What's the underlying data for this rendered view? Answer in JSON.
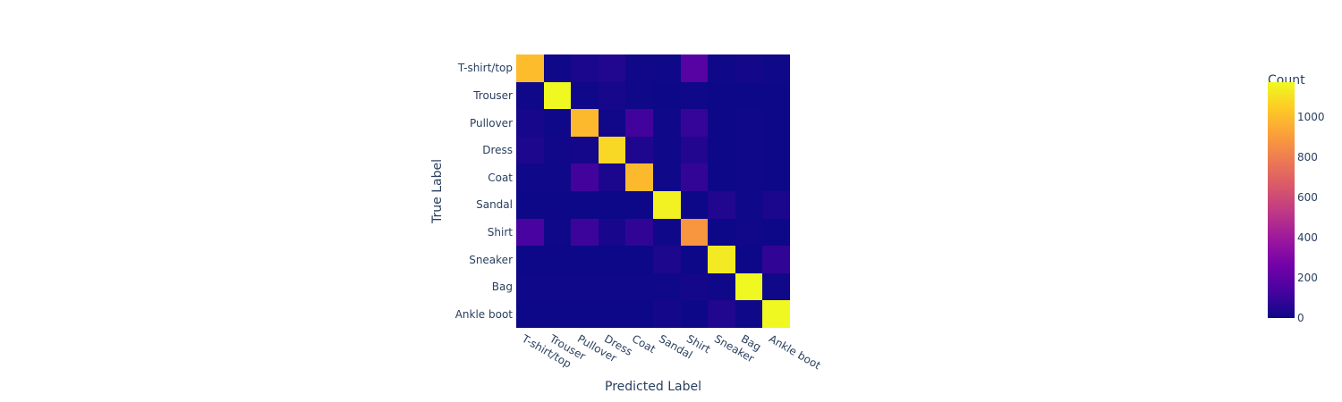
{
  "chart_data": {
    "type": "heatmap",
    "title": "",
    "xlabel": "Predicted Label",
    "ylabel": "True Label",
    "categories_x": [
      "T-shirt/top",
      "Trouser",
      "Pullover",
      "Dress",
      "Coat",
      "Sandal",
      "Shirt",
      "Sneaker",
      "Bag",
      "Ankle boot"
    ],
    "categories_y": [
      "T-shirt/top",
      "Trouser",
      "Pullover",
      "Dress",
      "Coat",
      "Sandal",
      "Shirt",
      "Sneaker",
      "Bag",
      "Ankle boot"
    ],
    "z": [
      [
        1000,
        5,
        30,
        45,
        10,
        5,
        180,
        5,
        15,
        5
      ],
      [
        5,
        1170,
        5,
        20,
        5,
        0,
        5,
        0,
        0,
        0
      ],
      [
        20,
        5,
        990,
        10,
        120,
        5,
        90,
        0,
        5,
        0
      ],
      [
        35,
        10,
        15,
        1080,
        40,
        5,
        50,
        0,
        5,
        0
      ],
      [
        5,
        5,
        120,
        30,
        990,
        5,
        85,
        0,
        5,
        0
      ],
      [
        0,
        0,
        0,
        0,
        0,
        1150,
        0,
        45,
        5,
        30
      ],
      [
        140,
        5,
        110,
        25,
        80,
        5,
        880,
        0,
        10,
        0
      ],
      [
        0,
        0,
        0,
        0,
        0,
        35,
        0,
        1130,
        0,
        80
      ],
      [
        5,
        5,
        5,
        5,
        5,
        5,
        15,
        5,
        1170,
        5
      ],
      [
        0,
        0,
        0,
        0,
        0,
        15,
        0,
        45,
        5,
        1170
      ]
    ],
    "colorscale": "Plasma",
    "colorbar": {
      "title": "Count",
      "range": [
        0,
        1173
      ],
      "ticks": [
        0,
        200,
        400,
        600,
        800,
        1000
      ]
    },
    "grid": false,
    "legend_position": "colorbar-right"
  },
  "colors": {
    "text": "#2a3f5f",
    "background": "#ffffff"
  }
}
